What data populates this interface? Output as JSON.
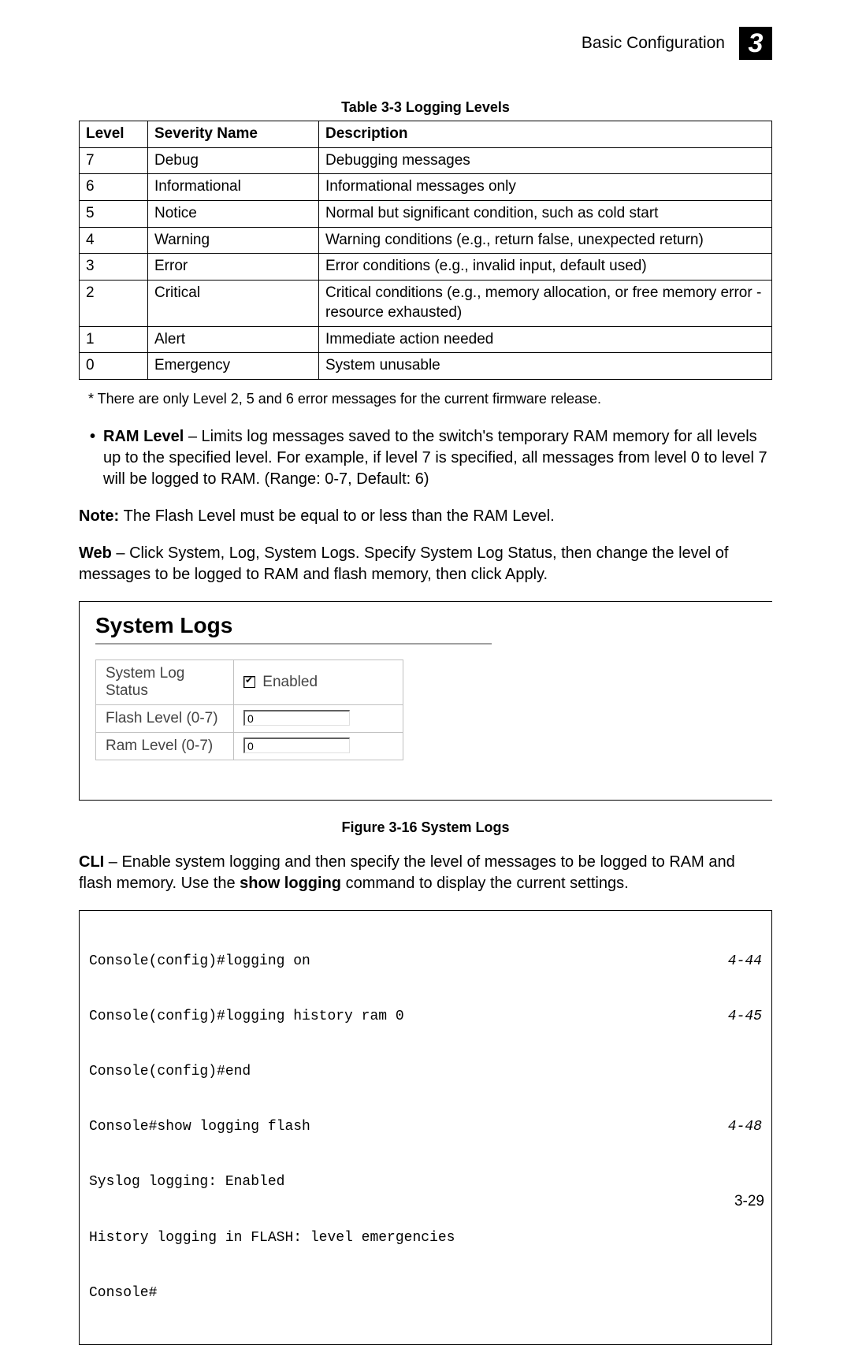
{
  "header": {
    "title": "Basic Configuration",
    "chapter_badge": "3"
  },
  "table": {
    "caption": "Table 3-3  Logging Levels",
    "columns": [
      "Level",
      "Severity Name",
      "Description"
    ],
    "rows": [
      [
        "7",
        "Debug",
        "Debugging messages"
      ],
      [
        "6",
        "Informational",
        "Informational messages only"
      ],
      [
        "5",
        "Notice",
        "Normal but significant condition, such as cold start"
      ],
      [
        "4",
        "Warning",
        "Warning conditions (e.g., return false, unexpected return)"
      ],
      [
        "3",
        "Error",
        "Error conditions (e.g., invalid input, default used)"
      ],
      [
        "2",
        "Critical",
        "Critical conditions (e.g., memory allocation, or free memory error - resource exhausted)"
      ],
      [
        "1",
        "Alert",
        "Immediate action needed"
      ],
      [
        "0",
        "Emergency",
        "System unusable"
      ]
    ],
    "footnote": "* There are only Level 2, 5 and 6 error messages for the current firmware release."
  },
  "paragraphs": {
    "ram_level_lead": "RAM Level",
    "ram_level_rest": " – Limits log messages saved to the switch's temporary RAM memory for all levels up to the specified level. For example, if level 7 is specified, all messages from level 0 to level 7 will be logged to RAM. (Range: 0-7, Default: 6)",
    "note_lead": "Note: ",
    "note_rest": "The Flash Level must be equal to or less than the RAM Level.",
    "web_lead": "Web",
    "web_rest": " – Click System, Log, System Logs. Specify System Log Status, then change the level of messages to be logged to RAM and flash memory, then click Apply.",
    "cli_lead": "CLI",
    "cli_mid": " – Enable system logging and then specify the level of messages to be logged to RAM and flash memory. Use the ",
    "cli_cmd": "show logging",
    "cli_end": " command to display the current settings."
  },
  "screenshot": {
    "title": "System Logs",
    "rows": {
      "status_label": "System Log Status",
      "status_enabled_label": "Enabled",
      "status_checked": true,
      "flash_label": "Flash Level (0-7)",
      "flash_value": "0",
      "ram_label": "Ram Level (0-7)",
      "ram_value": "0"
    },
    "caption": "Figure 3-16  System Logs"
  },
  "cli_box": {
    "lines": [
      {
        "text": "Console(config)#logging on",
        "ref": "4-44"
      },
      {
        "text": "Console(config)#logging history ram 0",
        "ref": "4-45"
      },
      {
        "text": "Console(config)#end",
        "ref": ""
      },
      {
        "text": "Console#show logging flash",
        "ref": "4-48"
      },
      {
        "text": "Syslog logging: Enabled",
        "ref": ""
      },
      {
        "text": "History logging in FLASH: level emergencies",
        "ref": ""
      },
      {
        "text": "Console#",
        "ref": ""
      }
    ]
  },
  "page_number": "3-29"
}
